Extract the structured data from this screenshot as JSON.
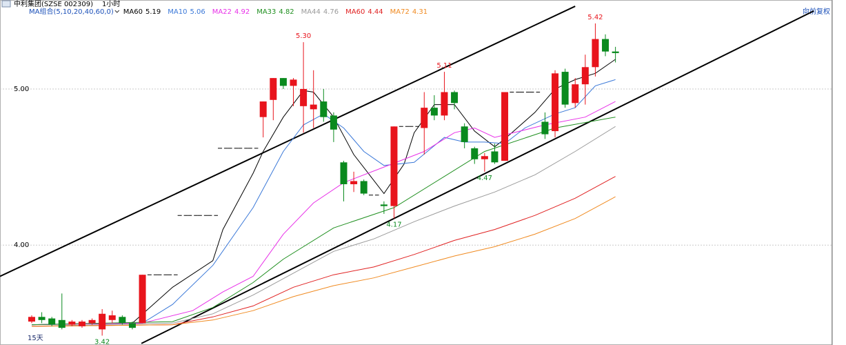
{
  "chart_data": {
    "type": "candlestick",
    "stock": "中利集团(SZSE 002309)",
    "period": "1小时",
    "adjust": "向前复权",
    "range": "15天",
    "indicator": "MA组合(5,10,20,40,60,0)",
    "categories": [
      null,
      null,
      null,
      null,
      null,
      null,
      null,
      null,
      null,
      null,
      null,
      null,
      null,
      null,
      null,
      null,
      null,
      null,
      null,
      null,
      null,
      null,
      null,
      null,
      null,
      null,
      null,
      null,
      null,
      null,
      null,
      null,
      null,
      null,
      null,
      null,
      null,
      null,
      null,
      null,
      null,
      null,
      null,
      null,
      null,
      null,
      null,
      null,
      null,
      null,
      null,
      null,
      null,
      null,
      null,
      null,
      null,
      null,
      null
    ],
    "open": [
      3.51,
      3.54,
      3.53,
      3.52,
      3.49,
      3.48,
      3.5,
      3.46,
      3.52,
      3.54,
      3.5,
      3.5,
      3.81,
      3.81,
      3.81,
      4.19,
      4.19,
      4.19,
      4.19,
      4.62,
      4.62,
      4.62,
      4.62,
      4.82,
      4.93,
      5.07,
      5.02,
      4.89,
      4.87,
      4.92,
      4.83,
      4.53,
      4.39,
      4.41,
      4.32,
      4.26,
      4.25,
      4.76,
      4.76,
      4.75,
      4.88,
      4.83,
      4.98,
      4.76,
      4.62,
      4.55,
      4.6,
      4.54,
      4.98,
      4.98,
      4.98,
      4.79,
      4.73,
      5.11,
      4.91,
      5.03,
      5.14,
      5.32,
      5.24
    ],
    "close": [
      3.54,
      3.52,
      3.49,
      3.47,
      3.51,
      3.51,
      3.52,
      3.56,
      3.55,
      3.5,
      3.47,
      3.81,
      3.81,
      3.81,
      3.81,
      4.19,
      4.19,
      4.19,
      4.19,
      4.62,
      4.62,
      4.62,
      4.62,
      4.92,
      5.07,
      5.02,
      5.06,
      5.0,
      4.9,
      4.82,
      4.74,
      4.39,
      4.41,
      4.33,
      4.32,
      4.25,
      4.76,
      4.76,
      4.76,
      4.88,
      4.83,
      4.98,
      4.91,
      4.66,
      4.55,
      4.57,
      4.53,
      4.98,
      4.98,
      4.98,
      4.98,
      4.71,
      5.1,
      4.9,
      5.03,
      5.14,
      5.32,
      5.24,
      5.23
    ],
    "high": [
      3.55,
      3.57,
      3.54,
      3.69,
      3.52,
      3.52,
      3.53,
      3.59,
      3.58,
      3.55,
      3.51,
      3.81,
      3.81,
      3.81,
      3.81,
      4.19,
      4.19,
      4.19,
      4.19,
      4.62,
      4.62,
      4.62,
      4.62,
      4.92,
      5.07,
      5.07,
      5.07,
      5.3,
      5.12,
      5.0,
      4.85,
      4.54,
      4.47,
      4.42,
      4.32,
      4.28,
      4.76,
      4.76,
      4.76,
      4.98,
      4.96,
      5.11,
      4.99,
      4.78,
      4.63,
      4.59,
      4.65,
      4.98,
      4.98,
      4.98,
      4.98,
      4.85,
      5.12,
      5.13,
      5.07,
      5.22,
      5.42,
      5.35,
      5.27
    ],
    "low": [
      3.5,
      3.5,
      3.48,
      3.46,
      3.48,
      3.47,
      3.49,
      3.42,
      3.5,
      3.49,
      3.46,
      3.5,
      3.81,
      3.81,
      3.81,
      4.19,
      4.19,
      4.19,
      4.19,
      4.62,
      4.62,
      4.62,
      4.62,
      4.69,
      4.8,
      5.0,
      4.89,
      4.72,
      4.75,
      4.79,
      4.66,
      4.28,
      4.34,
      4.32,
      4.32,
      4.2,
      4.17,
      4.76,
      4.76,
      4.58,
      4.8,
      4.8,
      4.87,
      4.62,
      4.52,
      4.47,
      4.52,
      4.54,
      4.98,
      4.98,
      4.98,
      4.68,
      4.69,
      4.88,
      4.88,
      4.9,
      5.08,
      5.21,
      5.17
    ],
    "up_color": "#e8141c",
    "down_color": "#0a8a1e",
    "series": [
      {
        "name": "MA60",
        "last": 5.19,
        "color": "#000000",
        "x": [
          0,
          10,
          14,
          18,
          19,
          22,
          23,
          25,
          27,
          28,
          30,
          32,
          35,
          37,
          38,
          40,
          42,
          44,
          46,
          47,
          50,
          52,
          54,
          56,
          58
        ],
        "values": [
          3.49,
          3.5,
          3.73,
          3.9,
          4.1,
          4.46,
          4.6,
          4.82,
          4.99,
          4.98,
          4.82,
          4.58,
          4.33,
          4.52,
          4.72,
          4.9,
          4.9,
          4.73,
          4.63,
          4.68,
          4.85,
          5.0,
          5.06,
          5.1,
          5.19
        ]
      },
      {
        "name": "MA10",
        "last": 5.06,
        "color": "#3a78d8",
        "x": [
          0,
          11,
          14,
          18,
          22,
          25,
          27,
          29,
          31,
          33,
          35,
          38,
          41,
          43,
          45,
          47,
          49,
          52,
          54,
          56,
          58
        ],
        "values": [
          3.49,
          3.5,
          3.62,
          3.87,
          4.24,
          4.6,
          4.77,
          4.84,
          4.75,
          4.6,
          4.51,
          4.53,
          4.69,
          4.66,
          4.66,
          4.65,
          4.75,
          4.84,
          4.88,
          5.02,
          5.06
        ]
      },
      {
        "name": "MA22",
        "last": 4.92,
        "color": "#e830e8",
        "x": [
          0,
          11,
          16,
          19,
          22,
          25,
          28,
          31,
          35,
          39,
          42,
          44,
          46,
          51,
          55,
          58
        ],
        "values": [
          3.49,
          3.5,
          3.58,
          3.7,
          3.8,
          4.07,
          4.27,
          4.4,
          4.5,
          4.6,
          4.72,
          4.75,
          4.69,
          4.77,
          4.82,
          4.92
        ]
      },
      {
        "name": "MA33",
        "last": 4.82,
        "color": "#1f8f1f",
        "x": [
          0,
          14,
          18,
          22,
          25,
          30,
          36,
          41,
          45,
          52,
          58
        ],
        "values": [
          3.49,
          3.51,
          3.6,
          3.76,
          3.91,
          4.11,
          4.24,
          4.44,
          4.6,
          4.75,
          4.82
        ]
      },
      {
        "name": "MA44",
        "last": 4.76,
        "color": "#9a9a9a",
        "x": [
          0,
          14,
          18,
          22,
          26,
          30,
          34,
          38,
          42,
          46,
          50,
          54,
          58
        ],
        "values": [
          3.48,
          3.5,
          3.56,
          3.68,
          3.82,
          3.96,
          4.04,
          4.15,
          4.25,
          4.34,
          4.45,
          4.6,
          4.76
        ]
      },
      {
        "name": "MA60",
        "last": 4.44,
        "color": "#e02020",
        "x": [
          0,
          14,
          18,
          22,
          26,
          30,
          34,
          38,
          42,
          46,
          50,
          54,
          58
        ],
        "values": [
          3.48,
          3.49,
          3.54,
          3.61,
          3.73,
          3.81,
          3.86,
          3.94,
          4.03,
          4.1,
          4.19,
          4.3,
          4.44
        ]
      },
      {
        "name": "MA72",
        "last": 4.31,
        "color": "#f08a20",
        "x": [
          0,
          14,
          18,
          22,
          26,
          30,
          34,
          38,
          42,
          46,
          50,
          54,
          58
        ],
        "values": [
          3.48,
          3.49,
          3.52,
          3.58,
          3.67,
          3.74,
          3.79,
          3.86,
          3.93,
          3.99,
          4.07,
          4.17,
          4.31
        ]
      }
    ],
    "trendlines": [
      {
        "x": [
          -3.15,
          54
        ],
        "values": [
          3.8,
          5.53
        ]
      },
      {
        "x": [
          10.9,
          77.7
        ],
        "values": [
          3.37,
          5.5
        ]
      }
    ],
    "annotations": [
      {
        "x": 27,
        "value": 5.3,
        "label": "5.30",
        "pos": "above"
      },
      {
        "x": 41,
        "value": 5.11,
        "label": "5.11",
        "pos": "above"
      },
      {
        "x": 56,
        "value": 5.42,
        "label": "5.42",
        "pos": "above"
      },
      {
        "x": 45,
        "value": 4.47,
        "label": "4.47",
        "pos": "below"
      },
      {
        "x": 36,
        "value": 4.17,
        "label": "4.17",
        "pos": "below"
      },
      {
        "x": 7,
        "value": 3.42,
        "label": "3.42",
        "pos": "below"
      }
    ],
    "xlim": [
      -3.15,
      79.4
    ],
    "ylim": [
      3.36,
      5.57
    ],
    "yticks": [
      {
        "value": 4,
        "label": "4.00"
      },
      {
        "value": 5,
        "label": "5.00"
      }
    ],
    "grid": true
  }
}
